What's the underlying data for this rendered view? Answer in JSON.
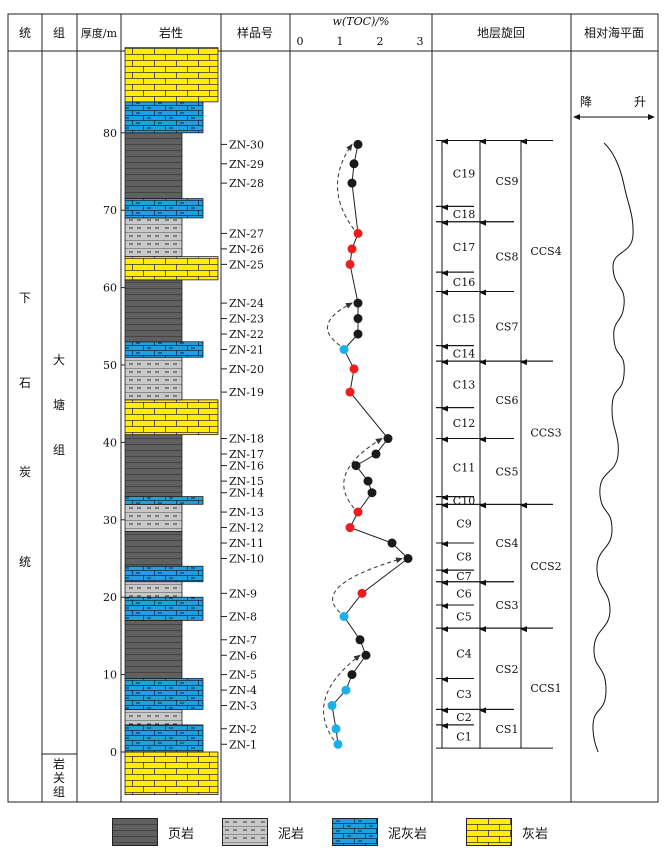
{
  "headers": {
    "system": "统",
    "formation": "组",
    "thickness": "厚度/m",
    "lithology": "岩性",
    "sample_no": "样品号",
    "toc": "w(TOC)/%",
    "cycles": "地层旋回",
    "sea_level": "相对海平面"
  },
  "system_chars": [
    "下",
    "石",
    "炭",
    "统"
  ],
  "formation_upper_chars": [
    "大",
    "塘",
    "组"
  ],
  "formation_lower_chars": [
    "岩",
    "关",
    "组"
  ],
  "sea_level": {
    "fall": "降",
    "rise": "升"
  },
  "legend": [
    {
      "key": "shale",
      "label": "页岩"
    },
    {
      "key": "mudstone",
      "label": "泥岩"
    },
    {
      "key": "marl",
      "label": "泥灰岩"
    },
    {
      "key": "limestone",
      "label": "灰岩"
    }
  ],
  "colors": {
    "shale": "#606060",
    "mudstone": "#c8c8c8",
    "marl": "#1da1e0",
    "limestone": "#ffee00",
    "toc_black": "#1a1a1a",
    "toc_red": "#ee1c1c",
    "toc_blue": "#1ab0ea"
  },
  "thickness_ticks": [
    0,
    10,
    20,
    30,
    40,
    50,
    60,
    70,
    80
  ],
  "lithology_column": [
    {
      "type": "limestone",
      "from": -5.5,
      "to": 0
    },
    {
      "type": "marl",
      "from": 0,
      "to": 3.5
    },
    {
      "type": "mudstone",
      "from": 3.5,
      "to": 5.5
    },
    {
      "type": "marl",
      "from": 5.5,
      "to": 9.5
    },
    {
      "type": "shale",
      "from": 9.5,
      "to": 17
    },
    {
      "type": "marl",
      "from": 17,
      "to": 20
    },
    {
      "type": "mudstone",
      "from": 20,
      "to": 22
    },
    {
      "type": "marl",
      "from": 22,
      "to": 24
    },
    {
      "type": "shale",
      "from": 24,
      "to": 28.5
    },
    {
      "type": "mudstone",
      "from": 28.5,
      "to": 32
    },
    {
      "type": "marl",
      "from": 32,
      "to": 33
    },
    {
      "type": "shale",
      "from": 33,
      "to": 41
    },
    {
      "type": "limestone",
      "from": 41,
      "to": 45.5
    },
    {
      "type": "mudstone",
      "from": 45.5,
      "to": 51
    },
    {
      "type": "marl",
      "from": 51,
      "to": 53
    },
    {
      "type": "shale",
      "from": 53,
      "to": 61
    },
    {
      "type": "limestone",
      "from": 61,
      "to": 64
    },
    {
      "type": "mudstone",
      "from": 64,
      "to": 69
    },
    {
      "type": "marl",
      "from": 69,
      "to": 71.5
    },
    {
      "type": "shale",
      "from": 71.5,
      "to": 80
    },
    {
      "type": "marl",
      "from": 80,
      "to": 84
    },
    {
      "type": "limestone",
      "from": 84,
      "to": 91
    }
  ],
  "chart_data": {
    "type": "line",
    "title": "",
    "xlabel": "w(TOC)/%",
    "ylabel": "厚度/m",
    "xlim": [
      0,
      3
    ],
    "xticks": [
      0,
      1,
      2,
      3
    ],
    "ylim": [
      -5.5,
      91
    ],
    "series": [
      {
        "points": [
          {
            "sample": "ZN-1",
            "depth": 1,
            "toc": 0.95,
            "color": "blue"
          },
          {
            "sample": "ZN-2",
            "depth": 3,
            "toc": 0.9,
            "color": "blue"
          },
          {
            "sample": "ZN-3",
            "depth": 6,
            "toc": 0.8,
            "color": "blue"
          },
          {
            "sample": "ZN-4",
            "depth": 8,
            "toc": 1.15,
            "color": "blue"
          },
          {
            "sample": "ZN-5",
            "depth": 10,
            "toc": 1.3,
            "color": "black"
          },
          {
            "sample": "ZN-6",
            "depth": 12.5,
            "toc": 1.65,
            "color": "black"
          },
          {
            "sample": "ZN-7",
            "depth": 14.5,
            "toc": 1.5,
            "color": "black"
          },
          {
            "sample": "ZN-8",
            "depth": 17.5,
            "toc": 1.1,
            "color": "blue"
          },
          {
            "sample": "ZN-9",
            "depth": 20.5,
            "toc": 1.55,
            "color": "red"
          },
          {
            "sample": "ZN-10",
            "depth": 25,
            "toc": 2.7,
            "color": "black"
          },
          {
            "sample": "ZN-11",
            "depth": 27,
            "toc": 2.3,
            "color": "black"
          },
          {
            "sample": "ZN-12",
            "depth": 29,
            "toc": 1.25,
            "color": "red"
          },
          {
            "sample": "ZN-13",
            "depth": 31,
            "toc": 1.45,
            "color": "red"
          },
          {
            "sample": "ZN-14",
            "depth": 33.5,
            "toc": 1.8,
            "color": "black"
          },
          {
            "sample": "ZN-15",
            "depth": 35,
            "toc": 1.7,
            "color": "black"
          },
          {
            "sample": "ZN-16",
            "depth": 37,
            "toc": 1.4,
            "color": "black"
          },
          {
            "sample": "ZN-17",
            "depth": 38.5,
            "toc": 1.9,
            "color": "black"
          },
          {
            "sample": "ZN-18",
            "depth": 40.5,
            "toc": 2.2,
            "color": "black"
          },
          {
            "sample": "ZN-19",
            "depth": 46.5,
            "toc": 1.25,
            "color": "red"
          },
          {
            "sample": "ZN-20",
            "depth": 49.5,
            "toc": 1.35,
            "color": "red"
          },
          {
            "sample": "ZN-21",
            "depth": 52,
            "toc": 1.1,
            "color": "blue"
          },
          {
            "sample": "ZN-22",
            "depth": 54,
            "toc": 1.45,
            "color": "black"
          },
          {
            "sample": "ZN-23",
            "depth": 56,
            "toc": 1.45,
            "color": "black"
          },
          {
            "sample": "ZN-24",
            "depth": 58,
            "toc": 1.45,
            "color": "black"
          },
          {
            "sample": "ZN-25",
            "depth": 63,
            "toc": 1.25,
            "color": "red"
          },
          {
            "sample": "ZN-26",
            "depth": 65,
            "toc": 1.3,
            "color": "red"
          },
          {
            "sample": "ZN-27",
            "depth": 67,
            "toc": 1.45,
            "color": "red"
          },
          {
            "sample": "ZN-28",
            "depth": 73.5,
            "toc": 1.3,
            "color": "black"
          },
          {
            "sample": "ZN-29",
            "depth": 76,
            "toc": 1.35,
            "color": "black"
          },
          {
            "sample": "ZN-30",
            "depth": 78.5,
            "toc": 1.45,
            "color": "black"
          }
        ]
      }
    ]
  },
  "cycles": {
    "small": [
      {
        "label": "C1",
        "from": 0.5,
        "to": 3.5
      },
      {
        "label": "C2",
        "from": 3.5,
        "to": 5.5
      },
      {
        "label": "C3",
        "from": 5.5,
        "to": 9.5
      },
      {
        "label": "C4",
        "from": 9.5,
        "to": 16
      },
      {
        "label": "C5",
        "from": 16,
        "to": 19
      },
      {
        "label": "C6",
        "from": 19,
        "to": 22
      },
      {
        "label": "C7",
        "from": 22,
        "to": 23.5
      },
      {
        "label": "C8",
        "from": 23.5,
        "to": 27
      },
      {
        "label": "C9",
        "from": 27,
        "to": 32
      },
      {
        "label": "C10",
        "from": 32,
        "to": 33
      },
      {
        "label": "C11",
        "from": 33,
        "to": 40.5
      },
      {
        "label": "C12",
        "from": 40.5,
        "to": 44.5
      },
      {
        "label": "C13",
        "from": 44.5,
        "to": 50.5
      },
      {
        "label": "C14",
        "from": 50.5,
        "to": 52.5
      },
      {
        "label": "C15",
        "from": 52.5,
        "to": 59.5
      },
      {
        "label": "C16",
        "from": 59.5,
        "to": 62
      },
      {
        "label": "C17",
        "from": 62,
        "to": 68.5
      },
      {
        "label": "C18",
        "from": 68.5,
        "to": 70.5
      },
      {
        "label": "C19",
        "from": 70.5,
        "to": 79
      }
    ],
    "medium": [
      {
        "label": "CS1",
        "from": 0.5,
        "to": 5.5
      },
      {
        "label": "CS2",
        "from": 5.5,
        "to": 16
      },
      {
        "label": "CS3",
        "from": 16,
        "to": 22
      },
      {
        "label": "CS4",
        "from": 22,
        "to": 32
      },
      {
        "label": "CS5",
        "from": 32,
        "to": 40.5
      },
      {
        "label": "CS6",
        "from": 40.5,
        "to": 50.5
      },
      {
        "label": "CS7",
        "from": 50.5,
        "to": 59.5
      },
      {
        "label": "CS8",
        "from": 59.5,
        "to": 68.5
      },
      {
        "label": "CS9",
        "from": 68.5,
        "to": 79
      }
    ],
    "large": [
      {
        "label": "CCS1",
        "from": 0.5,
        "to": 16
      },
      {
        "label": "CCS2",
        "from": 16,
        "to": 32
      },
      {
        "label": "CCS3",
        "from": 32,
        "to": 50.5
      },
      {
        "label": "CCS4",
        "from": 50.5,
        "to": 79
      }
    ]
  }
}
